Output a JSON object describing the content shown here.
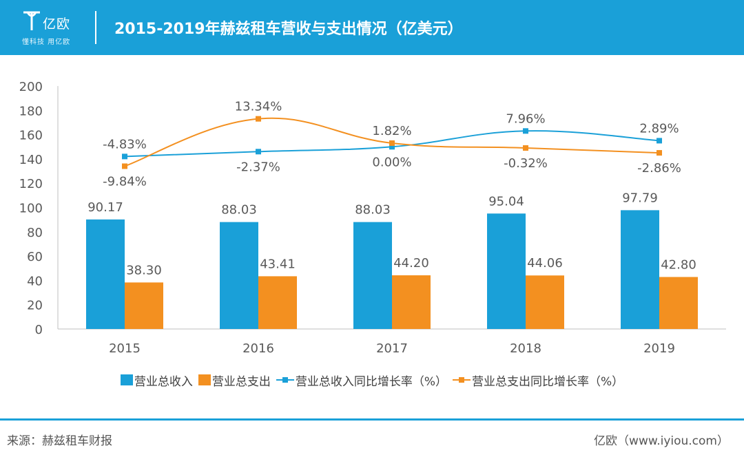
{
  "header": {
    "logo_name": "亿欧",
    "logo_slogan": "懂科技 用亿欧",
    "title": "2015-2019年赫兹租车营收与支出情况（亿美元）"
  },
  "colors": {
    "header_bg": "#1aa0d8",
    "revenue": "#1aa0d8",
    "expense": "#f39020"
  },
  "chart_data": {
    "type": "bar",
    "categories": [
      "2015",
      "2016",
      "2017",
      "2018",
      "2019"
    ],
    "ylim": [
      0,
      200
    ],
    "yticks": [
      0,
      20,
      40,
      60,
      80,
      100,
      120,
      140,
      160,
      180,
      200
    ],
    "series": [
      {
        "name": "营业总收入",
        "kind": "bar",
        "color": "#1aa0d8",
        "values": [
          90.17,
          88.03,
          88.03,
          95.04,
          97.79
        ],
        "labels": [
          "90.17",
          "88.03",
          "88.03",
          "95.04",
          "97.79"
        ]
      },
      {
        "name": "营业总支出",
        "kind": "bar",
        "color": "#f39020",
        "values": [
          38.3,
          43.41,
          44.2,
          44.06,
          42.8
        ],
        "labels": [
          "38.30",
          "43.41",
          "44.20",
          "44.06",
          "42.80"
        ]
      },
      {
        "name": "营业总收入同比增长率（%）",
        "kind": "line",
        "color": "#1aa0d8",
        "values": [
          142,
          146,
          150,
          163,
          155
        ],
        "labels": [
          "-4.83%",
          "-2.37%",
          "0.00%",
          "7.96%",
          "2.89%"
        ],
        "growth_pct": [
          -4.83,
          -2.37,
          0.0,
          7.96,
          2.89
        ]
      },
      {
        "name": "营业总支出同比增长率（%）",
        "kind": "line",
        "color": "#f39020",
        "values": [
          134,
          173,
          153,
          149,
          145
        ],
        "labels": [
          "-9.84%",
          "13.34%",
          "1.82%",
          "-0.32%",
          "-2.86%"
        ],
        "growth_pct": [
          -9.84,
          13.34,
          1.82,
          -0.32,
          -2.86
        ]
      }
    ],
    "grid": false,
    "legend": "bottom"
  },
  "footer": {
    "source": "来源：赫兹租车财报",
    "brand": "亿欧（www.iyiou.com）"
  }
}
